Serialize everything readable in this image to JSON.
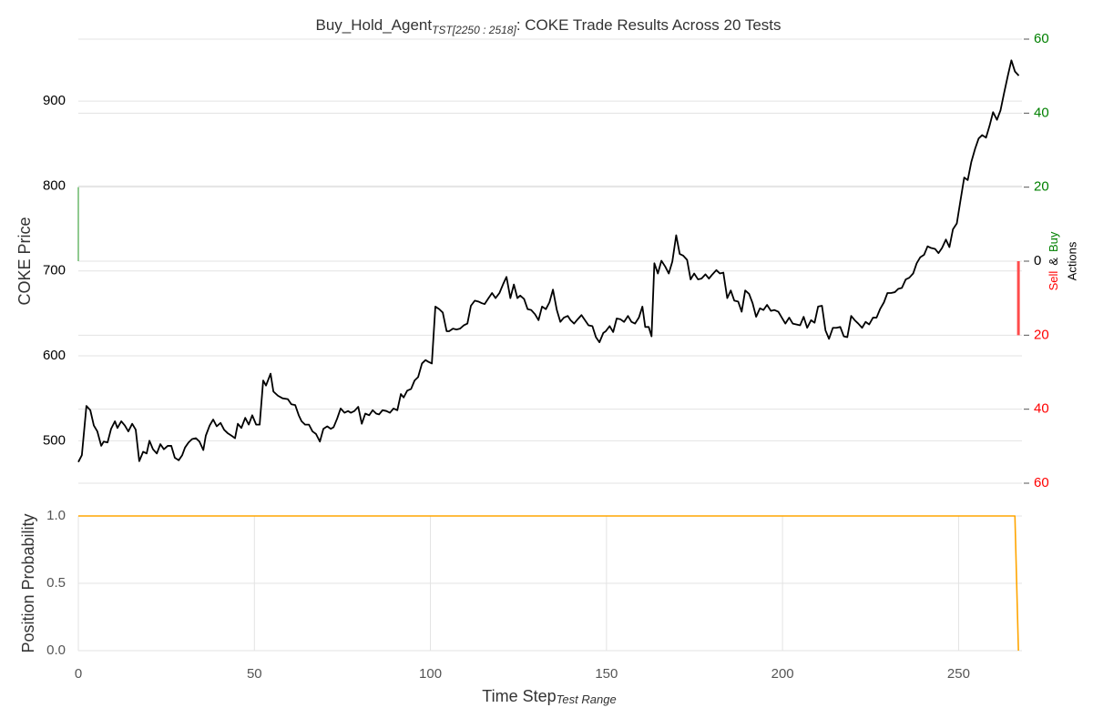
{
  "chart_data": [
    {
      "type": "line",
      "title": "Buy_Hold_Agent",
      "title_subscript": "TST[2250 : 2518]",
      "title_suffix": ": COKE Trade Results Across 20 Tests",
      "ylabel": "COKE Price",
      "y2label": {
        "sell": "Sell",
        "and": "&",
        "buy": "Buy",
        "actions": "Actions"
      },
      "color": "#000000",
      "x": [
        0,
        1,
        2.3,
        3.4,
        4.4,
        5.4,
        6.5,
        7.2,
        8.3,
        9.3,
        10.4,
        11.1,
        12.2,
        13.2,
        14.2,
        15.3,
        16.3,
        17.3,
        18.4,
        19.4,
        20.2,
        21.2,
        22.3,
        23.3,
        24.3,
        25.4,
        26.4,
        27.4,
        28.5,
        29.5,
        30.3,
        31.3,
        32.3,
        33.4,
        34.4,
        35.5,
        36.2,
        37.3,
        38.3,
        39.3,
        40.4,
        41.4,
        42.4,
        43.5,
        44.5,
        45.3,
        46.3,
        47.4,
        48.4,
        49.4,
        50.5,
        51.5,
        52.5,
        53.3,
        54.6,
        55.4,
        56.7,
        58,
        59.5,
        60.5,
        61.6,
        62.6,
        63.4,
        64.4,
        65.5,
        66.5,
        67.5,
        68.6,
        69.6,
        70.7,
        71.7,
        72.5,
        73.5,
        74.5,
        75.6,
        76.6,
        77.4,
        78.4,
        79.5,
        80.5,
        81.5,
        82.6,
        83.6,
        84.6,
        85.4,
        86.4,
        87.5,
        88.5,
        89.5,
        90.6,
        91.6,
        92.4,
        93.4,
        94.5,
        95.5,
        96.5,
        97.6,
        98.6,
        99.4,
        100.4,
        101.4,
        102.5,
        103.5,
        104.6,
        105.3,
        106.4,
        107.4,
        108.4,
        109.5,
        110.5,
        111.5,
        112.6,
        113.6,
        114.6,
        115.4,
        116.5,
        117.5,
        118.5,
        119.6,
        120.6,
        121.6,
        122.7,
        123.7,
        124.7,
        125.5,
        126.6,
        127.6,
        128.6,
        129.7,
        130.7,
        131.7,
        132.8,
        133.8,
        134.8,
        135.9,
        136.9,
        137.9,
        139,
        139.8,
        140.8,
        141.8,
        142.9,
        143.9,
        144.9,
        146,
        147,
        148,
        149.1,
        149.8,
        150.9,
        151.9,
        152.9,
        154,
        155,
        156.1,
        157.1,
        158.1,
        159.2,
        160.2,
        161,
        162,
        162.8,
        163.6,
        164.6,
        165.6,
        166.7,
        167.7,
        168.7,
        169.8,
        170.8,
        171.8,
        172.9,
        173.9,
        174.9,
        176,
        177,
        178.1,
        179.1,
        180.1,
        181.2,
        182.2,
        183.2,
        184.3,
        185.3,
        186.3,
        187.4,
        188.4,
        189.4,
        190.5,
        191.5,
        192.5,
        193.6,
        194.6,
        195.6,
        196.7,
        197.7,
        198.8,
        199.8,
        200.8,
        201.9,
        202.9,
        203.9,
        205,
        206,
        207,
        208.1,
        209.1,
        210.1,
        211.2,
        212.2,
        213.2,
        214.3,
        215.3,
        216.4,
        217.4,
        218.4,
        219.5,
        220.5,
        221.5,
        222.6,
        223.6,
        224.6,
        225.7,
        226.7,
        227.7,
        228.8,
        229.8,
        230.8,
        231.9,
        232.9,
        233.9,
        235,
        236,
        237.1,
        238.1,
        239.1,
        240.2,
        241.2,
        242.2,
        243.3,
        244.3,
        245.3,
        246.4,
        247.4,
        248.4,
        249.5,
        250.5,
        251.6,
        252.6,
        253.6,
        254.7,
        255.7,
        256.7,
        257.8,
        258.8,
        259.8,
        260.9,
        261.9,
        262.9,
        264,
        265,
        266,
        267.1
      ],
      "values": [
        475,
        483,
        541,
        536,
        518,
        511,
        494,
        499,
        498,
        514,
        523,
        515,
        523,
        518,
        511,
        520,
        513,
        476,
        487,
        485,
        500,
        490,
        485,
        496,
        490,
        494,
        494,
        480,
        477,
        483,
        492,
        498,
        502,
        503,
        499,
        489,
        506,
        518,
        525,
        517,
        521,
        513,
        509,
        506,
        503,
        520,
        515,
        527,
        519,
        530,
        519,
        519,
        571,
        565,
        579,
        558,
        553,
        550,
        549,
        543,
        542,
        530,
        523,
        519,
        519,
        511,
        508,
        499,
        514,
        517,
        514,
        516,
        526,
        538,
        533,
        535,
        533,
        535,
        540,
        520,
        532,
        530,
        536,
        532,
        531,
        536,
        535,
        533,
        538,
        536,
        555,
        551,
        559,
        561,
        571,
        575,
        591,
        595,
        593,
        591,
        658,
        655,
        651,
        629,
        629,
        632,
        631,
        632,
        636,
        638,
        659,
        665,
        664,
        662,
        661,
        668,
        674,
        668,
        674,
        684,
        693,
        668,
        684,
        668,
        671,
        667,
        655,
        654,
        649,
        642,
        658,
        655,
        663,
        678,
        654,
        640,
        645,
        647,
        642,
        638,
        643,
        648,
        642,
        636,
        635,
        622,
        616,
        627,
        629,
        635,
        628,
        644,
        643,
        640,
        647,
        640,
        638,
        645,
        658,
        634,
        634,
        623,
        709,
        697,
        712,
        705,
        697,
        711,
        742,
        720,
        718,
        713,
        690,
        697,
        690,
        691,
        696,
        691,
        696,
        701,
        697,
        698,
        668,
        677,
        665,
        664,
        652,
        677,
        673,
        662,
        646,
        656,
        654,
        660,
        653,
        654,
        652,
        645,
        638,
        645,
        638,
        637,
        636,
        646,
        633,
        642,
        639,
        658,
        659,
        630,
        620,
        633,
        633,
        634,
        623,
        622,
        647,
        642,
        638,
        633,
        640,
        637,
        645,
        645,
        655,
        663,
        674,
        674,
        675,
        679,
        680,
        690,
        692,
        697,
        709,
        716,
        719,
        729,
        727,
        726,
        721,
        727,
        737,
        728,
        749,
        756,
        782,
        810,
        807,
        828,
        844,
        856,
        860,
        857,
        871,
        887,
        878,
        889,
        909,
        930,
        948,
        935,
        930
      ],
      "xlim": [
        0,
        268
      ],
      "ylim": [
        450,
        973
      ],
      "yticks": [
        500,
        600,
        700,
        800,
        900
      ],
      "y2lim": [
        -60,
        60
      ],
      "y2ticks": [
        60,
        40,
        20,
        0,
        {
          "value": -20,
          "label": "20"
        },
        {
          "value": -40,
          "label": "40"
        },
        {
          "value": -60,
          "label": "60"
        }
      ],
      "y2_positive_color": "#008000",
      "y2_negative_color": "#ff0000",
      "buy": {
        "x": [
          0
        ],
        "values": [
          20
        ],
        "color": "#6ab86a"
      },
      "sell": {
        "x": [
          267
        ],
        "values": [
          -20
        ],
        "color": "#ff4c4c"
      },
      "grid": true
    },
    {
      "type": "line",
      "ylabel": "Position Probability",
      "xlabel": "Time Step",
      "xlabel_subscript": "Test Range",
      "color": "#ffa500",
      "x": [
        0,
        266,
        267
      ],
      "values": [
        1,
        1,
        0
      ],
      "xlim": [
        0,
        268
      ],
      "xticks": [
        0,
        50,
        100,
        150,
        200,
        250
      ],
      "ylim": [
        0,
        1
      ],
      "yticks": [
        {
          "value": 0,
          "label": "0.0"
        },
        {
          "value": 0.5,
          "label": "0.5"
        },
        {
          "value": 1,
          "label": "1.0"
        }
      ],
      "grid": true
    }
  ]
}
